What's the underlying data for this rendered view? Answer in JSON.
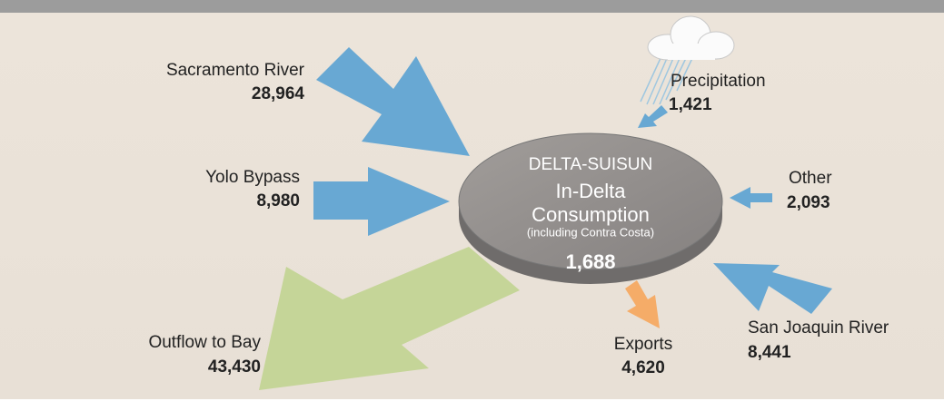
{
  "center": {
    "heading": "DELTA-SUISUN",
    "title_line1": "In-Delta",
    "title_line2": "Consumption",
    "note": "(including Contra Costa)",
    "value": "1,688"
  },
  "flows": [
    {
      "label": "Sacramento River",
      "value": "28,964"
    },
    {
      "label": "Yolo Bypass",
      "value": "8,980"
    },
    {
      "label": "Outflow to Bay",
      "value": "43,430"
    },
    {
      "label": "Precipitation",
      "value": "1,421"
    },
    {
      "label": "Other",
      "value": "2,093"
    },
    {
      "label": "San Joaquin River",
      "value": "8,441"
    },
    {
      "label": "Exports",
      "value": "4,620"
    }
  ]
}
